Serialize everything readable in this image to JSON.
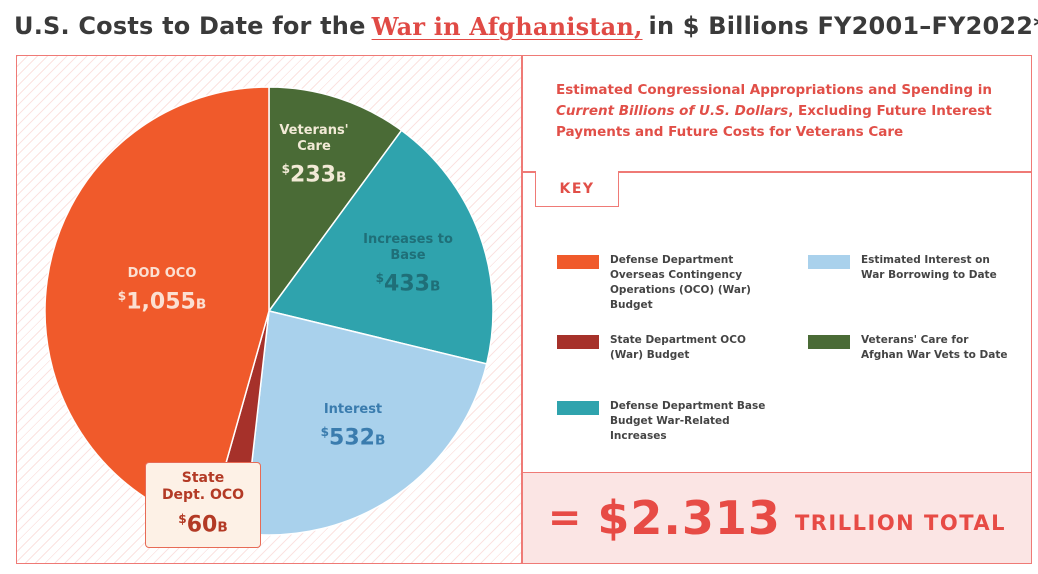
{
  "title": {
    "prefix": "U.S. Costs to Date for the",
    "highlight": "War in Afghanistan,",
    "suffix": "in $ Billions FY2001–FY2022*"
  },
  "subtitle": {
    "line1": "Estimated Congressional Appropriations and Spending in",
    "emphasis": "Current Billions of U.S. Dollars",
    "rest": ", Excluding Future Interest Payments and Future Costs for Veterans Care"
  },
  "key_label": "KEY",
  "legend": [
    {
      "text": "Defense Department Overseas Contingency Operations (OCO) (War) Budget",
      "color": "#f05a2b"
    },
    {
      "text": "Estimated Interest on War Borrowing to Date",
      "color": "#a9d1ec"
    },
    {
      "text": "State Department OCO (War) Budget",
      "color": "#a6312a"
    },
    {
      "text": "Veterans' Care for Afghan War Vets to Date",
      "color": "#4a6b36"
    },
    {
      "text": "Defense Department Base Budget War-Related Increases",
      "color": "#2fa3ad"
    }
  ],
  "total": {
    "eq": "=",
    "amount": "$2.313",
    "word": "TRILLION TOTAL"
  },
  "chart_data": {
    "type": "pie",
    "title": "U.S. Costs to Date for the War in Afghanistan, in $ Billions FY2001–FY2022*",
    "unit": "B",
    "start": "12 o'clock, clockwise",
    "slices": [
      {
        "label": "Veterans' Care",
        "value": 233,
        "color": "#4a6b36",
        "text_color": "#f2ead6"
      },
      {
        "label": "Increases to Base",
        "value": 433,
        "color": "#2fa3ad",
        "text_color": "#1f6f78"
      },
      {
        "label": "Interest",
        "value": 532,
        "color": "#a9d1ec",
        "text_color": "#3a7cae"
      },
      {
        "label": "State Dept. OCO",
        "value": 60,
        "color": "#a6312a",
        "text_color": "#b33a25"
      },
      {
        "label": "DOD OCO",
        "value": 1055,
        "color": "#f05a2b",
        "text_color": "#fbe0d2"
      }
    ]
  }
}
